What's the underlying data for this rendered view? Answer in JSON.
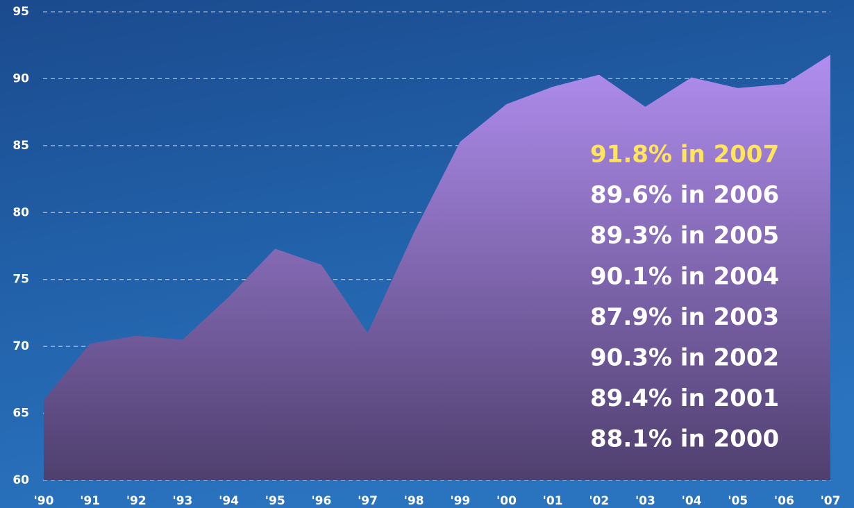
{
  "chart_data": {
    "type": "area",
    "categories": [
      "'90",
      "'91",
      "'92",
      "'93",
      "'94",
      "'95",
      "'96",
      "'97",
      "'98",
      "'99",
      "'00",
      "'01",
      "'02",
      "'03",
      "'04",
      "'05",
      "'06",
      "'07"
    ],
    "values": [
      66.0,
      70.2,
      70.8,
      70.5,
      73.7,
      77.3,
      76.1,
      71.0,
      78.5,
      85.3,
      88.1,
      89.4,
      90.3,
      87.9,
      90.1,
      89.3,
      89.6,
      91.8
    ],
    "ylim": [
      60,
      95
    ],
    "yticks": [
      60,
      65,
      70,
      75,
      80,
      85,
      90,
      95
    ],
    "grid": true,
    "annotations": [
      "91.8% in 2007",
      "89.6% in 2006",
      "89.3% in 2005",
      "90.1% in 2004",
      "87.9% in 2003",
      "90.3% in 2002",
      "89.4% in 2001",
      "88.1% in 2000"
    ],
    "highlight_color": "#ffe55c",
    "top_color": "#b18ef0",
    "bottom_color": "#4f3f6e"
  }
}
